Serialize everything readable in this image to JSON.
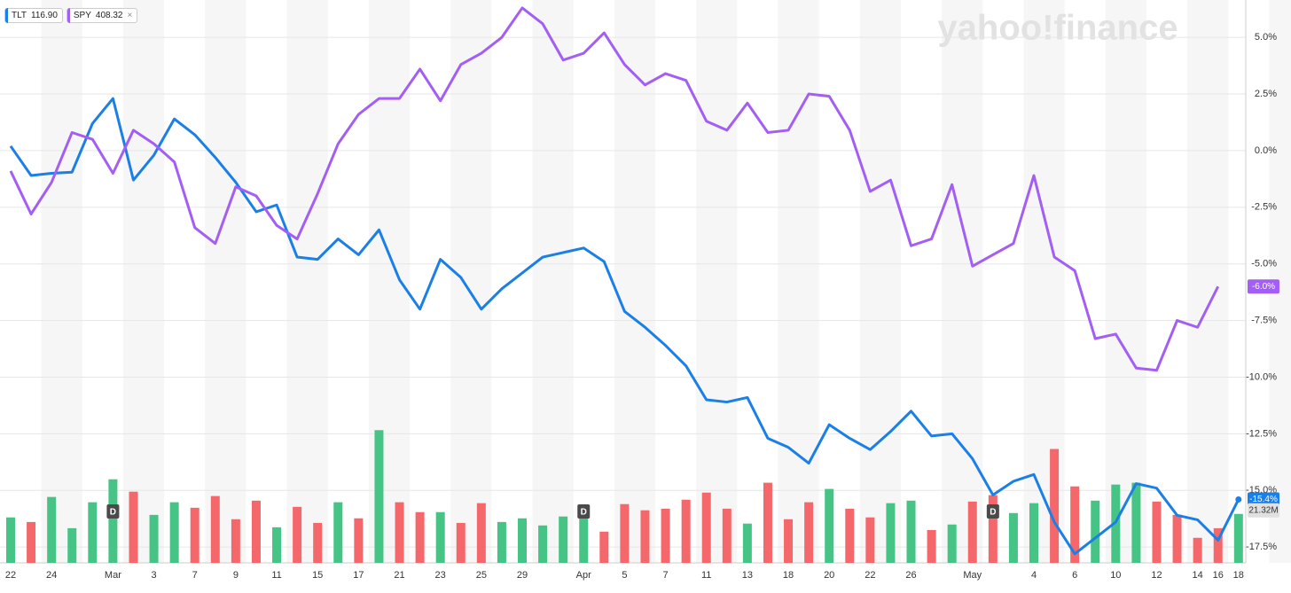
{
  "chart_data": {
    "type": "line",
    "watermark": "yahoo!finance",
    "categories": [
      "22",
      null,
      "24",
      null,
      null,
      "Mar",
      null,
      "3",
      null,
      "7",
      null,
      "9",
      null,
      "11",
      null,
      "15",
      null,
      "17",
      null,
      "21",
      null,
      "23",
      null,
      "25",
      null,
      "29",
      null,
      null,
      "Apr",
      null,
      "5",
      null,
      "7",
      null,
      "11",
      null,
      "13",
      null,
      "18",
      null,
      "20",
      null,
      "22",
      null,
      "26",
      null,
      null,
      "May",
      null,
      null,
      "4",
      null,
      "6",
      null,
      "10",
      null,
      "12",
      null,
      "14",
      "16",
      "18"
    ],
    "ylim": [
      -18.2,
      6.65
    ],
    "yticks": [
      {
        "value": 5,
        "label": "5.0%"
      },
      {
        "value": 2.5,
        "label": "2.5%"
      },
      {
        "value": 0,
        "label": "0.0%"
      },
      {
        "value": -2.5,
        "label": "-2.5%"
      },
      {
        "value": -5,
        "label": "-5.0%"
      },
      {
        "value": -7.5,
        "label": "-7.5%"
      },
      {
        "value": -10,
        "label": "-10.0%"
      },
      {
        "value": -12.5,
        "label": "-12.5%"
      },
      {
        "value": -15,
        "label": "-15.0%"
      },
      {
        "value": -17.5,
        "label": "-17.5%"
      }
    ],
    "grid": true,
    "series": [
      {
        "name": "TLT",
        "price": "116.90",
        "color": "#1a7fe6",
        "end_label": "-15.4%",
        "values": [
          0.2,
          -1.1,
          -1.0,
          -0.95,
          1.2,
          2.3,
          -1.3,
          -0.2,
          1.4,
          0.7,
          -0.3,
          -1.4,
          -2.7,
          -2.4,
          -4.7,
          -4.8,
          -3.9,
          -4.6,
          -3.5,
          -5.7,
          -7.0,
          -4.8,
          -5.6,
          -7.0,
          -6.1,
          -5.4,
          -4.7,
          -4.5,
          -4.3,
          -4.9,
          -7.1,
          -7.8,
          -8.6,
          -9.5,
          -11.0,
          -11.1,
          -10.9,
          -12.7,
          -13.1,
          -13.8,
          -12.1,
          -12.7,
          -13.2,
          -12.4,
          -11.5,
          -12.6,
          -12.5,
          -13.6,
          -15.2,
          -14.6,
          -14.3,
          -16.4,
          -17.8,
          -17.1,
          -16.4,
          -14.7,
          -14.9,
          -16.1,
          -16.3,
          -17.2,
          -15.4
        ]
      },
      {
        "name": "SPY",
        "price": "408.32",
        "close": "×",
        "color": "#a35ef3",
        "end_label": "-6.0%",
        "values": [
          -0.9,
          -2.8,
          -1.4,
          0.8,
          0.5,
          -1.0,
          0.9,
          0.3,
          -0.5,
          -3.4,
          -4.1,
          -1.6,
          -2.0,
          -3.3,
          -3.9,
          -1.9,
          0.3,
          1.6,
          2.3,
          2.3,
          3.6,
          2.2,
          3.8,
          4.3,
          5.0,
          6.3,
          5.6,
          4.0,
          4.3,
          5.2,
          3.8,
          2.9,
          3.4,
          3.1,
          1.3,
          0.9,
          2.1,
          0.8,
          0.9,
          2.5,
          2.4,
          0.9,
          -1.8,
          -1.3,
          -4.2,
          -3.9,
          -1.5,
          -5.1,
          -4.6,
          -4.1,
          -1.1,
          -4.7,
          -5.3,
          -8.3,
          -8.1,
          -9.6,
          -9.7,
          -7.5,
          -7.8,
          -6.0,
          null
        ]
      }
    ],
    "volume": {
      "ylim": [
        0,
        83
      ],
      "end_label": "21.32M",
      "values": [
        19.8,
        17.8,
        28.7,
        15.1,
        26.4,
        36.4,
        31.0,
        20.9,
        26.4,
        24.0,
        29.1,
        19.0,
        27.1,
        15.5,
        24.4,
        17.4,
        26.4,
        19.4,
        57.8,
        26.4,
        22.1,
        22.1,
        17.4,
        26.0,
        17.8,
        19.4,
        16.3,
        20.2,
        21.7,
        13.6,
        25.6,
        22.9,
        23.6,
        27.5,
        30.6,
        23.6,
        17.1,
        34.9,
        19.0,
        26.4,
        32.2,
        23.6,
        19.8,
        26.0,
        27.1,
        14.3,
        16.7,
        26.7,
        29.5,
        21.7,
        26.0,
        49.6,
        33.3,
        27.1,
        34.1,
        34.9,
        26.7,
        20.9,
        10.9,
        15.1,
        21.32
      ],
      "colors": [
        "#45c486",
        "#f4686c",
        "#45c486",
        "#45c486",
        "#45c486",
        "#45c486",
        "#f4686c",
        "#45c486",
        "#45c486",
        "#f4686c",
        "#f4686c",
        "#f4686c",
        "#f4686c",
        "#45c486",
        "#f4686c",
        "#f4686c",
        "#45c486",
        "#f4686c",
        "#45c486",
        "#f4686c",
        "#f4686c",
        "#45c486",
        "#f4686c",
        "#f4686c",
        "#45c486",
        "#45c486",
        "#45c486",
        "#45c486",
        "#45c486",
        "#f4686c",
        "#f4686c",
        "#f4686c",
        "#f4686c",
        "#f4686c",
        "#f4686c",
        "#f4686c",
        "#45c486",
        "#f4686c",
        "#f4686c",
        "#f4686c",
        "#45c486",
        "#f4686c",
        "#f4686c",
        "#45c486",
        "#45c486",
        "#f4686c",
        "#45c486",
        "#f4686c",
        "#f4686c",
        "#45c486",
        "#45c486",
        "#f4686c",
        "#f4686c",
        "#45c486",
        "#45c486",
        "#45c486",
        "#f4686c",
        "#f4686c",
        "#f4686c",
        "#f4686c",
        "#45c486"
      ]
    },
    "annotations": [
      {
        "x": 5,
        "text": "D"
      },
      {
        "x": 28,
        "text": "D"
      },
      {
        "x": 48,
        "text": "D"
      }
    ]
  }
}
